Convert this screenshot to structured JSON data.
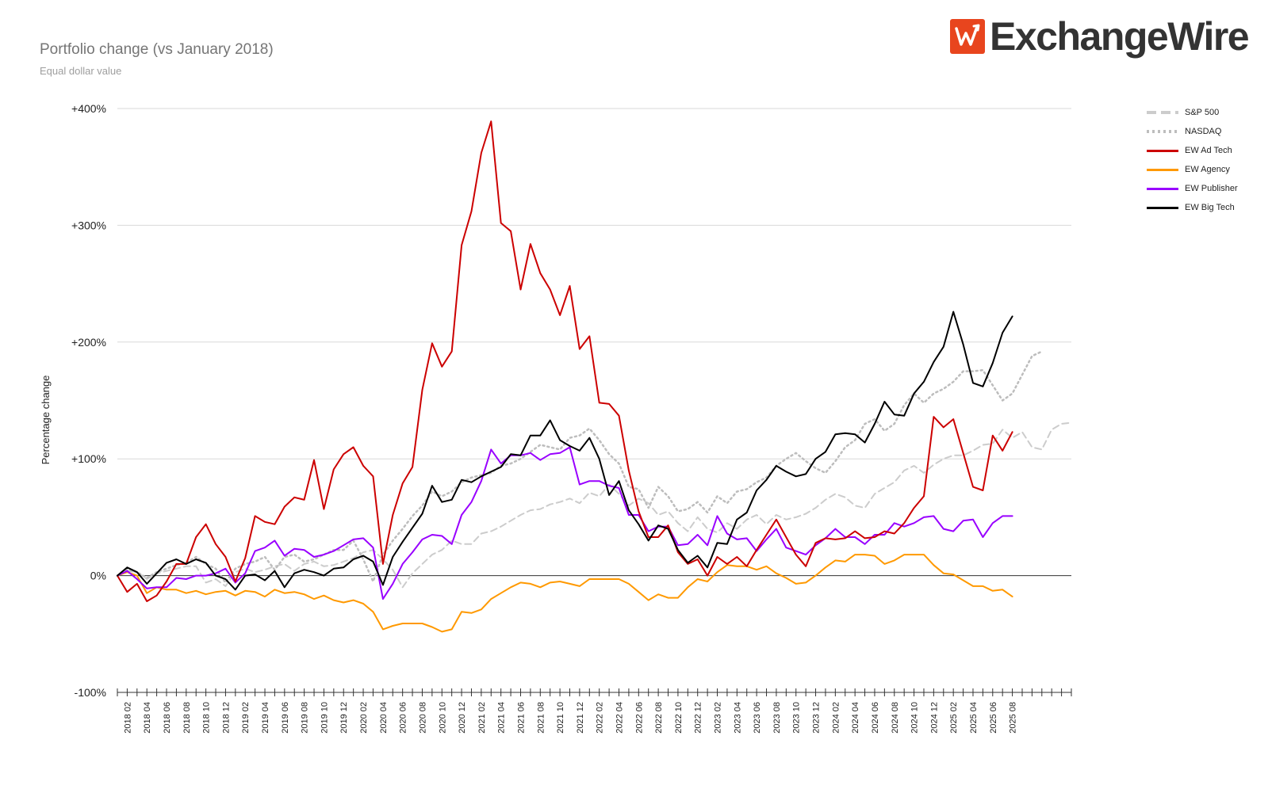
{
  "header": {
    "title": "Portfolio change (vs January 2018)",
    "subtitle": "Equal dollar value",
    "logo_text": "ExchangeWire"
  },
  "colors": {
    "sp500": "#cccccc",
    "nasdaq": "#bdbdbd",
    "ad_tech": "#cc0000",
    "agency": "#ff9900",
    "publisher": "#9900ff",
    "big_tech": "#000000",
    "brand": "#e8451e"
  },
  "chart_data": {
    "type": "line",
    "ylabel": "Percentage change",
    "ylim": [
      -100,
      400
    ],
    "y_ticks": [
      "-100%",
      "0%",
      "+100%",
      "+200%",
      "+300%",
      "+400%"
    ],
    "y_tick_values": [
      -100,
      0,
      100,
      200,
      300,
      400
    ],
    "grid": true,
    "legend_position": "right",
    "x_start": "2018-01",
    "x_tick_labels": [
      "2018 02",
      "2018 04",
      "2018 06",
      "2018 08",
      "2018 10",
      "2018 12",
      "2019 02",
      "2019 04",
      "2019 06",
      "2019 08",
      "2019 10",
      "2019 12",
      "2020 02",
      "2020 04",
      "2020 06",
      "2020 08",
      "2020 10",
      "2020 12",
      "2021 02",
      "2021 04",
      "2021 06",
      "2021 08",
      "2021 10",
      "2021 12",
      "2022 02",
      "2022 04",
      "2022 06",
      "2022 08",
      "2022 10",
      "2022 12",
      "2023 02",
      "2023 04",
      "2023 06",
      "2023 08",
      "2023 10",
      "2023 12",
      "2024 02",
      "2024 04",
      "2024 06",
      "2024 08",
      "2024 10",
      "2024 12",
      "2025 02",
      "2025 04",
      "2025 06",
      "2025 08"
    ],
    "series": [
      {
        "name": "S&P 500",
        "style": "dashed",
        "values": [
          0,
          4,
          3,
          -3,
          2,
          4,
          6,
          8,
          8,
          -6,
          -3,
          -9,
          3,
          6,
          3,
          5,
          8,
          10,
          4,
          10,
          12,
          8,
          9,
          12,
          15,
          20,
          22,
          14,
          5,
          -10,
          2,
          10,
          18,
          22,
          30,
          27,
          27,
          36,
          38,
          42,
          47,
          52,
          56,
          57,
          61,
          63,
          66,
          62,
          71,
          68,
          78,
          70,
          60,
          66,
          62,
          52,
          55,
          45,
          38,
          50,
          40,
          37,
          45,
          40,
          48,
          52,
          44,
          52,
          48,
          50,
          53,
          58,
          65,
          70,
          67,
          60,
          58,
          70,
          75,
          80,
          90,
          94,
          88,
          95,
          100,
          103,
          103,
          107,
          112,
          113,
          125,
          118,
          123,
          110,
          108,
          125,
          130,
          131
        ]
      },
      {
        "name": "NASDAQ",
        "style": "dotted",
        "values": [
          0,
          5,
          3,
          -2,
          3,
          6,
          9,
          11,
          16,
          10,
          6,
          -6,
          6,
          10,
          12,
          16,
          5,
          16,
          18,
          12,
          14,
          18,
          22,
          22,
          30,
          14,
          -5,
          18,
          30,
          40,
          51,
          60,
          72,
          68,
          72,
          80,
          84,
          86,
          88,
          94,
          96,
          100,
          106,
          112,
          110,
          108,
          118,
          120,
          126,
          116,
          104,
          96,
          76,
          74,
          58,
          76,
          68,
          55,
          57,
          63,
          54,
          68,
          62,
          72,
          74,
          80,
          84,
          94,
          100,
          105,
          98,
          92,
          88,
          98,
          110,
          116,
          130,
          134,
          124,
          130,
          146,
          156,
          148,
          156,
          160,
          166,
          175,
          175,
          176,
          163,
          150,
          156,
          172,
          188,
          192
        ]
      },
      {
        "name": "EW Ad Tech",
        "style": "solid",
        "values": [
          0,
          -14,
          -7,
          -22,
          -17,
          -5,
          10,
          10,
          33,
          44,
          27,
          16,
          -5,
          15,
          51,
          46,
          44,
          59,
          67,
          65,
          99,
          57,
          91,
          104,
          110,
          94,
          85,
          10,
          52,
          79,
          93,
          159,
          199,
          179,
          192,
          283,
          312,
          362,
          389,
          302,
          295,
          245,
          284,
          259,
          245,
          223,
          248,
          194,
          205,
          148,
          147,
          137,
          90,
          55,
          33,
          33,
          43,
          20,
          10,
          14,
          0,
          16,
          10,
          16,
          8,
          22,
          35,
          48,
          33,
          18,
          8,
          28,
          32,
          31,
          32,
          38,
          32,
          33,
          38,
          36,
          45,
          58,
          68,
          136,
          127,
          134,
          105,
          76,
          73,
          120,
          107,
          123
        ]
      },
      {
        "name": "EW Agency",
        "style": "solid",
        "values": [
          0,
          3,
          0,
          -15,
          -10,
          -12,
          -12,
          -15,
          -13,
          -16,
          -14,
          -13,
          -17,
          -13,
          -14,
          -18,
          -12,
          -15,
          -14,
          -16,
          -20,
          -17,
          -21,
          -23,
          -21,
          -24,
          -31,
          -46,
          -43,
          -41,
          -41,
          -41,
          -44,
          -48,
          -46,
          -31,
          -32,
          -29,
          -20,
          -15,
          -10,
          -6,
          -7,
          -10,
          -6,
          -5,
          -7,
          -9,
          -3,
          -3,
          -3,
          -3,
          -7,
          -14,
          -21,
          -16,
          -19,
          -19,
          -10,
          -3,
          -5,
          3,
          9,
          8,
          8,
          5,
          8,
          2,
          -2,
          -7,
          -6,
          0,
          7,
          13,
          12,
          18,
          18,
          17,
          10,
          13,
          18,
          18,
          18,
          9,
          2,
          1,
          -4,
          -9,
          -9,
          -13,
          -12,
          -18
        ]
      },
      {
        "name": "EW Publisher",
        "style": "solid",
        "values": [
          0,
          4,
          -3,
          -11,
          -10,
          -10,
          -2,
          -3,
          0,
          0,
          2,
          6,
          -6,
          2,
          21,
          24,
          30,
          17,
          23,
          22,
          16,
          18,
          21,
          26,
          31,
          32,
          24,
          -20,
          -7,
          10,
          20,
          31,
          35,
          34,
          27,
          52,
          63,
          81,
          108,
          96,
          103,
          103,
          105,
          99,
          104,
          105,
          110,
          78,
          81,
          81,
          77,
          75,
          52,
          52,
          38,
          42,
          42,
          26,
          27,
          35,
          26,
          51,
          36,
          31,
          32,
          21,
          31,
          40,
          24,
          21,
          18,
          26,
          32,
          40,
          33,
          33,
          27,
          35,
          35,
          45,
          42,
          45,
          50,
          51,
          40,
          38,
          47,
          48,
          33,
          45,
          51,
          51
        ]
      },
      {
        "name": "EW Big Tech",
        "style": "solid",
        "values": [
          0,
          7,
          3,
          -7,
          2,
          11,
          14,
          10,
          14,
          11,
          0,
          -3,
          -12,
          0,
          1,
          -4,
          4,
          -10,
          2,
          5,
          3,
          0,
          6,
          7,
          14,
          17,
          12,
          -8,
          16,
          29,
          41,
          53,
          77,
          63,
          65,
          82,
          80,
          85,
          89,
          93,
          104,
          103,
          120,
          120,
          133,
          116,
          111,
          107,
          118,
          100,
          69,
          81,
          56,
          44,
          30,
          43,
          40,
          22,
          11,
          17,
          7,
          28,
          27,
          48,
          54,
          73,
          82,
          94,
          89,
          85,
          87,
          100,
          106,
          121,
          122,
          121,
          114,
          130,
          149,
          138,
          137,
          156,
          166,
          183,
          196,
          226,
          198,
          165,
          162,
          182,
          208,
          222
        ]
      }
    ]
  }
}
